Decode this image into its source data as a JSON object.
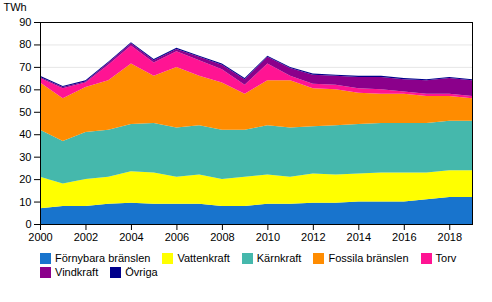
{
  "chart_data": {
    "type": "area",
    "stacked": true,
    "x": [
      2000,
      2001,
      2002,
      2003,
      2004,
      2005,
      2006,
      2007,
      2008,
      2009,
      2010,
      2011,
      2012,
      2013,
      2014,
      2015,
      2016,
      2017,
      2018,
      2019
    ],
    "series": [
      {
        "name": "Förnybara bränslen",
        "color": "#1874CD",
        "values": [
          7.0,
          8.0,
          8.0,
          9.0,
          9.5,
          9.0,
          9.0,
          9.0,
          8.0,
          8.0,
          9.0,
          9.0,
          9.5,
          9.5,
          10.0,
          10.0,
          10.0,
          11.0,
          12.0,
          12.0
        ]
      },
      {
        "name": "Vattenkraft",
        "color": "#FFFF00",
        "values": [
          14.0,
          10.0,
          12.0,
          12.0,
          14.0,
          14.0,
          12.0,
          13.0,
          12.0,
          13.0,
          13.0,
          12.0,
          13.0,
          12.5,
          12.5,
          13.0,
          13.0,
          12.0,
          12.0,
          12.0
        ]
      },
      {
        "name": "Kärnkraft",
        "color": "#45B8AC",
        "values": [
          21.0,
          19.0,
          21.0,
          21.0,
          21.0,
          22.0,
          22.0,
          22.0,
          22.0,
          21.0,
          22.0,
          22.0,
          21.0,
          22.0,
          22.0,
          22.0,
          22.0,
          22.0,
          22.0,
          22.0
        ]
      },
      {
        "name": "Fossila bränslen",
        "color": "#FF8C00",
        "values": [
          21.0,
          19.0,
          20.0,
          22.0,
          27.0,
          21.0,
          27.0,
          22.0,
          21.0,
          16.0,
          20.0,
          21.0,
          17.0,
          16.0,
          14.0,
          13.0,
          13.0,
          12.0,
          11.0,
          10.0
        ]
      },
      {
        "name": "Torv",
        "color": "#FF1493",
        "values": [
          2.0,
          4.5,
          2.0,
          7.0,
          8.0,
          6.0,
          7.0,
          7.0,
          6.0,
          4.0,
          7.5,
          2.0,
          2.0,
          2.0,
          2.0,
          2.0,
          1.0,
          1.0,
          1.0,
          1.0
        ]
      },
      {
        "name": "Vindkraft",
        "color": "#8B008B",
        "values": [
          0.5,
          0.5,
          0.5,
          0.8,
          1.0,
          1.0,
          1.0,
          1.5,
          2.0,
          2.5,
          3.0,
          3.5,
          4.0,
          4.0,
          5.0,
          5.5,
          5.5,
          6.0,
          7.0,
          7.0
        ]
      },
      {
        "name": "Övriga",
        "color": "#00008B",
        "values": [
          0.5,
          0.5,
          0.5,
          0.5,
          0.5,
          0.5,
          0.5,
          0.5,
          0.5,
          0.5,
          0.5,
          0.5,
          0.5,
          0.5,
          0.5,
          0.5,
          0.5,
          0.5,
          0.5,
          0.5
        ]
      }
    ],
    "ylabel": "TWh",
    "xlim": [
      2000,
      2019
    ],
    "xticks": [
      2000,
      2002,
      2004,
      2006,
      2008,
      2010,
      2012,
      2014,
      2016,
      2018
    ],
    "ylim": [
      0,
      90
    ],
    "yticks": [
      0,
      10,
      20,
      30,
      40,
      50,
      60,
      70,
      80,
      90
    ],
    "grid": true,
    "legend": "bottom"
  }
}
